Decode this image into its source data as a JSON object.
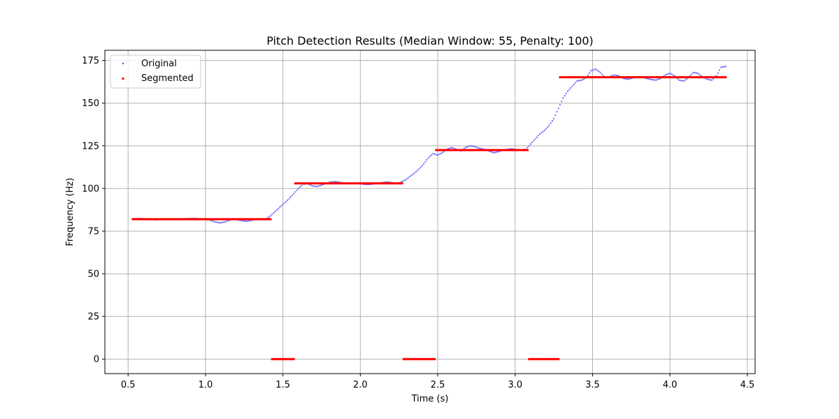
{
  "chart_data": {
    "type": "scatter",
    "title": "Pitch Detection Results (Median Window: 55, Penalty: 100)",
    "xlabel": "Time (s)",
    "ylabel": "Frequency (Hz)",
    "xlim": [
      0.35,
      4.55
    ],
    "ylim": [
      -8.5,
      181
    ],
    "x_ticks": [
      0.5,
      1.0,
      1.5,
      2.0,
      2.5,
      3.0,
      3.5,
      4.0,
      4.5
    ],
    "x_tick_labels": [
      "0.5",
      "1.0",
      "1.5",
      "2.0",
      "2.5",
      "3.0",
      "3.5",
      "4.0",
      "4.5"
    ],
    "y_ticks": [
      0,
      25,
      50,
      75,
      100,
      125,
      150,
      175
    ],
    "y_tick_labels": [
      "0",
      "25",
      "50",
      "75",
      "100",
      "125",
      "150",
      "175"
    ],
    "grid": true,
    "legend_position": "top-left",
    "series": [
      {
        "name": "Original",
        "color": "#4d4dff",
        "points": [
          [
            0.53,
            82.2
          ],
          [
            0.58,
            82.5
          ],
          [
            0.63,
            82.0
          ],
          [
            0.68,
            81.6
          ],
          [
            0.73,
            82.0
          ],
          [
            0.78,
            81.8
          ],
          [
            0.83,
            82.2
          ],
          [
            0.88,
            82.4
          ],
          [
            0.93,
            82.6
          ],
          [
            0.98,
            82.0
          ],
          [
            1.03,
            81.4
          ],
          [
            1.06,
            80.5
          ],
          [
            1.09,
            79.8
          ],
          [
            1.12,
            80.3
          ],
          [
            1.15,
            81.3
          ],
          [
            1.18,
            82.0
          ],
          [
            1.21,
            81.6
          ],
          [
            1.24,
            81.0
          ],
          [
            1.27,
            80.8
          ],
          [
            1.3,
            81.4
          ],
          [
            1.33,
            82.0
          ],
          [
            1.36,
            82.3
          ],
          [
            1.39,
            82.0
          ],
          [
            1.42,
            84.0
          ],
          [
            1.45,
            86.5
          ],
          [
            1.48,
            89.0
          ],
          [
            1.51,
            91.5
          ],
          [
            1.54,
            94.0
          ],
          [
            1.57,
            97.0
          ],
          [
            1.6,
            100.0
          ],
          [
            1.63,
            102.5
          ],
          [
            1.66,
            102.8
          ],
          [
            1.69,
            101.5
          ],
          [
            1.72,
            101.2
          ],
          [
            1.75,
            102.0
          ],
          [
            1.78,
            103.0
          ],
          [
            1.81,
            103.8
          ],
          [
            1.84,
            104.0
          ],
          [
            1.87,
            103.6
          ],
          [
            1.9,
            103.0
          ],
          [
            1.93,
            102.9
          ],
          [
            1.96,
            103.1
          ],
          [
            1.99,
            103.0
          ],
          [
            2.02,
            102.5
          ],
          [
            2.05,
            102.3
          ],
          [
            2.08,
            102.6
          ],
          [
            2.11,
            103.0
          ],
          [
            2.14,
            103.4
          ],
          [
            2.17,
            103.8
          ],
          [
            2.2,
            103.5
          ],
          [
            2.23,
            103.0
          ],
          [
            2.26,
            103.6
          ],
          [
            2.29,
            105.0
          ],
          [
            2.32,
            107.0
          ],
          [
            2.35,
            109.0
          ],
          [
            2.38,
            111.5
          ],
          [
            2.41,
            114.5
          ],
          [
            2.44,
            118.0
          ],
          [
            2.47,
            120.5
          ],
          [
            2.5,
            119.5
          ],
          [
            2.53,
            121.0
          ],
          [
            2.56,
            123.0
          ],
          [
            2.59,
            124.0
          ],
          [
            2.62,
            123.0
          ],
          [
            2.65,
            122.0
          ],
          [
            2.68,
            124.0
          ],
          [
            2.71,
            125.0
          ],
          [
            2.74,
            124.5
          ],
          [
            2.77,
            123.5
          ],
          [
            2.8,
            123.0
          ],
          [
            2.83,
            122.0
          ],
          [
            2.86,
            121.0
          ],
          [
            2.89,
            121.5
          ],
          [
            2.92,
            122.5
          ],
          [
            2.95,
            123.0
          ],
          [
            2.98,
            123.2
          ],
          [
            3.01,
            122.8
          ],
          [
            3.04,
            122.6
          ],
          [
            3.07,
            123.0
          ],
          [
            3.1,
            126.0
          ],
          [
            3.13,
            129.0
          ],
          [
            3.16,
            132.0
          ],
          [
            3.19,
            134.0
          ],
          [
            3.22,
            137.0
          ],
          [
            3.25,
            141.0
          ],
          [
            3.28,
            147.0
          ],
          [
            3.31,
            153.0
          ],
          [
            3.34,
            157.0
          ],
          [
            3.37,
            160.0
          ],
          [
            3.4,
            163.0
          ],
          [
            3.43,
            163.5
          ],
          [
            3.46,
            165.0
          ],
          [
            3.49,
            169.0
          ],
          [
            3.52,
            170.0
          ],
          [
            3.55,
            168.0
          ],
          [
            3.58,
            165.0
          ],
          [
            3.61,
            165.5
          ],
          [
            3.64,
            166.5
          ],
          [
            3.67,
            166.0
          ],
          [
            3.7,
            164.5
          ],
          [
            3.73,
            164.0
          ],
          [
            3.76,
            164.8
          ],
          [
            3.79,
            165.5
          ],
          [
            3.82,
            165.2
          ],
          [
            3.85,
            164.5
          ],
          [
            3.88,
            163.8
          ],
          [
            3.91,
            163.5
          ],
          [
            3.94,
            164.5
          ],
          [
            3.97,
            166.5
          ],
          [
            4.0,
            167.5
          ],
          [
            4.03,
            166.0
          ],
          [
            4.06,
            163.5
          ],
          [
            4.09,
            163.0
          ],
          [
            4.12,
            165.0
          ],
          [
            4.15,
            168.0
          ],
          [
            4.18,
            167.5
          ],
          [
            4.21,
            165.5
          ],
          [
            4.24,
            164.0
          ],
          [
            4.27,
            163.5
          ],
          [
            4.3,
            166.0
          ],
          [
            4.33,
            171.0
          ],
          [
            4.36,
            171.5
          ]
        ]
      },
      {
        "name": "Segmented",
        "color": "#ff0000",
        "segments": [
          {
            "x_start": 0.53,
            "x_end": 1.42,
            "y": 82.0
          },
          {
            "x_start": 1.43,
            "x_end": 1.57,
            "y": 0.0
          },
          {
            "x_start": 1.58,
            "x_end": 2.27,
            "y": 103.0
          },
          {
            "x_start": 2.28,
            "x_end": 2.48,
            "y": 0.0
          },
          {
            "x_start": 2.49,
            "x_end": 3.08,
            "y": 122.5
          },
          {
            "x_start": 3.09,
            "x_end": 3.28,
            "y": 0.0
          },
          {
            "x_start": 3.29,
            "x_end": 4.36,
            "y": 165.2
          }
        ]
      }
    ]
  }
}
